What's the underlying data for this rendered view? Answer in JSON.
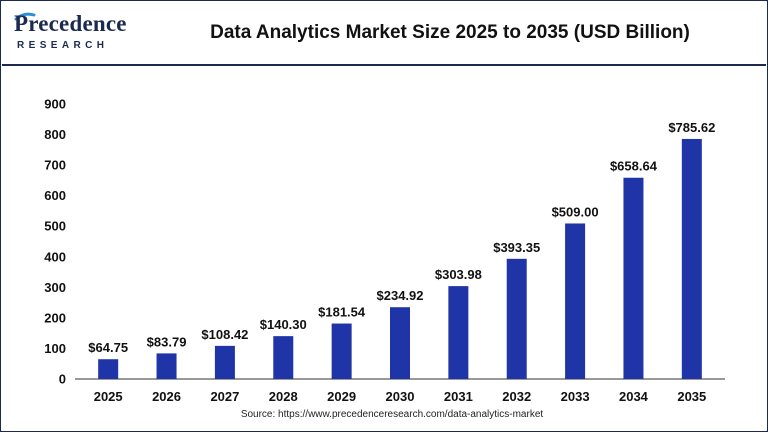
{
  "header": {
    "logo_main": "Precedence",
    "logo_sub": "RESEARCH",
    "title": "Data Analytics Market Size 2025 to 2035 (USD Billion)"
  },
  "source": "Source: https://www.precedenceresearch.com/data-analytics-market",
  "colors": {
    "bar": "#1f35a7",
    "axis": "#333333",
    "border": "#1b2a4e",
    "logo_accent": "#2a8fd6"
  },
  "chart_data": {
    "type": "bar",
    "title": "Data Analytics Market Size 2025 to 2035 (USD Billion)",
    "xlabel": "",
    "ylabel": "",
    "categories": [
      "2025",
      "2026",
      "2027",
      "2028",
      "2029",
      "2030",
      "2031",
      "2032",
      "2033",
      "2034",
      "2035"
    ],
    "values": [
      64.75,
      83.79,
      108.42,
      140.3,
      181.54,
      234.92,
      303.98,
      393.35,
      509.0,
      658.64,
      785.62
    ],
    "value_labels": [
      "$64.75",
      "$83.79",
      "$108.42",
      "$140.30",
      "$181.54",
      "$234.92",
      "$303.98",
      "$393.35",
      "$509.00",
      "$658.64",
      "$785.62"
    ],
    "ylim": [
      0,
      900
    ],
    "yticks": [
      "0",
      "100",
      "200",
      "300",
      "400",
      "500",
      "600",
      "700",
      "800",
      "900"
    ],
    "grid": false,
    "legend": "none"
  }
}
